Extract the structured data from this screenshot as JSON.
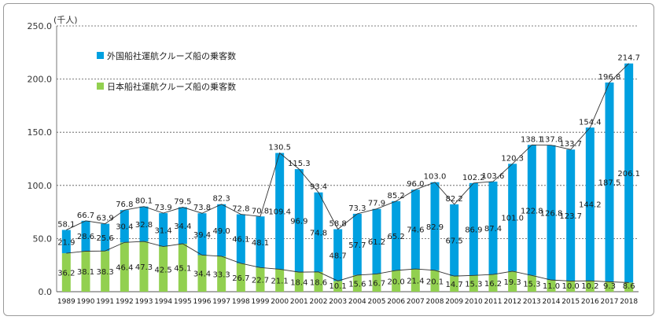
{
  "chart_data": {
    "type": "bar",
    "stacked": true,
    "unit_label": "(千人)",
    "ylim": [
      0,
      250
    ],
    "y_ticks": [
      "0.0",
      "50.0",
      "100.0",
      "150.0",
      "200.0",
      "250.0"
    ],
    "grid": "horizontal dashed",
    "legend_position": "top-left",
    "categories": [
      "1989",
      "1990",
      "1991",
      "1992",
      "1993",
      "1994",
      "1995",
      "1996",
      "1997",
      "1998",
      "1999",
      "2000",
      "2001",
      "2002",
      "2003",
      "2004",
      "2005",
      "2006",
      "2007",
      "2008",
      "2009",
      "2010",
      "2011",
      "2012",
      "2013",
      "2014",
      "2015",
      "2016",
      "2017",
      "2018"
    ],
    "series": [
      {
        "name": "日本船社運航クルーズ船の乗客数",
        "color": "#92d050",
        "values": [
          36.2,
          38.1,
          38.3,
          46.4,
          47.3,
          42.5,
          45.1,
          34.4,
          33.3,
          26.7,
          22.7,
          21.1,
          18.4,
          18.6,
          10.1,
          15.6,
          16.7,
          20.0,
          21.4,
          20.1,
          14.7,
          15.3,
          16.2,
          19.3,
          15.3,
          11.0,
          10.0,
          10.2,
          9.3,
          8.6
        ]
      },
      {
        "name": "外国船社運航クルーズ船の乗客数",
        "color": "#00a0e0",
        "values": [
          21.9,
          28.6,
          25.6,
          30.4,
          32.8,
          31.4,
          34.4,
          39.4,
          49.0,
          46.1,
          48.1,
          109.4,
          96.9,
          74.8,
          48.7,
          57.7,
          61.2,
          65.2,
          74.6,
          82.9,
          67.5,
          86.9,
          87.4,
          101.0,
          122.8,
          126.8,
          123.7,
          144.2,
          187.5,
          206.1
        ]
      }
    ],
    "totals": [
      58.1,
      66.7,
      63.9,
      76.8,
      80.1,
      73.9,
      79.5,
      73.8,
      82.3,
      72.8,
      70.8,
      130.5,
      115.3,
      93.4,
      58.8,
      73.3,
      77.9,
      85.2,
      96.0,
      103.0,
      82.2,
      102.2,
      103.6,
      120.3,
      138.1,
      137.8,
      133.7,
      154.4,
      196.8,
      214.7
    ]
  }
}
